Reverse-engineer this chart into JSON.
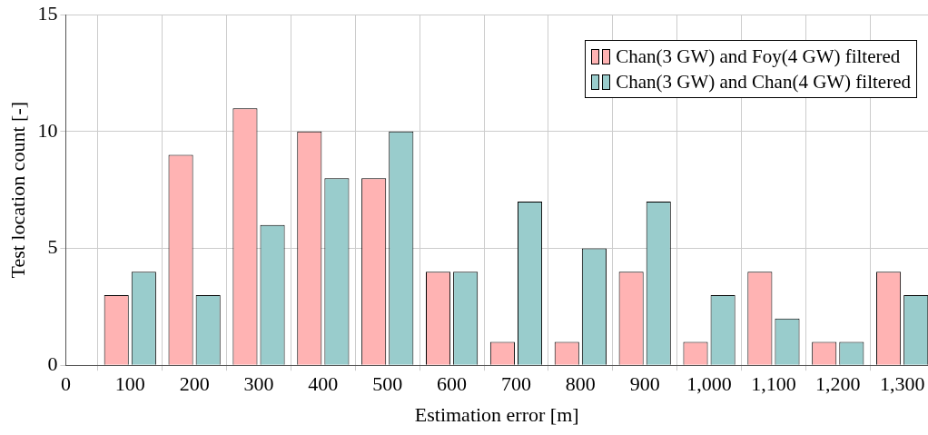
{
  "chart_data": {
    "type": "bar",
    "xlabel": "Estimation error [m]",
    "ylabel": "Test location count [-]",
    "x": [
      100,
      200,
      300,
      400,
      500,
      600,
      700,
      800,
      900,
      1000,
      1100,
      1200,
      1300
    ],
    "series": [
      {
        "name": "Chan(3 GW) and Foy(4 GW) filtered",
        "color": "#ffb3b3",
        "values": [
          3,
          9,
          11,
          10,
          8,
          4,
          1,
          1,
          4,
          1,
          4,
          1,
          4
        ]
      },
      {
        "name": "Chan(3 GW) and Chan(4 GW) filtered",
        "color": "#99cccc",
        "values": [
          4,
          3,
          6,
          8,
          10,
          4,
          7,
          5,
          7,
          3,
          2,
          1,
          3
        ]
      }
    ],
    "xlim": [
      0,
      1340
    ],
    "xticks": [
      0,
      100,
      200,
      300,
      400,
      500,
      600,
      700,
      800,
      900,
      {
        "value": 1000,
        "label": "1,000"
      },
      {
        "value": 1100,
        "label": "1,100"
      },
      {
        "value": 1200,
        "label": "1,200"
      },
      {
        "value": 1300,
        "label": "1,300"
      }
    ],
    "ylim": [
      0,
      15
    ],
    "yticks": [
      0,
      5,
      10,
      15
    ],
    "grid": true,
    "legend": "top right"
  }
}
